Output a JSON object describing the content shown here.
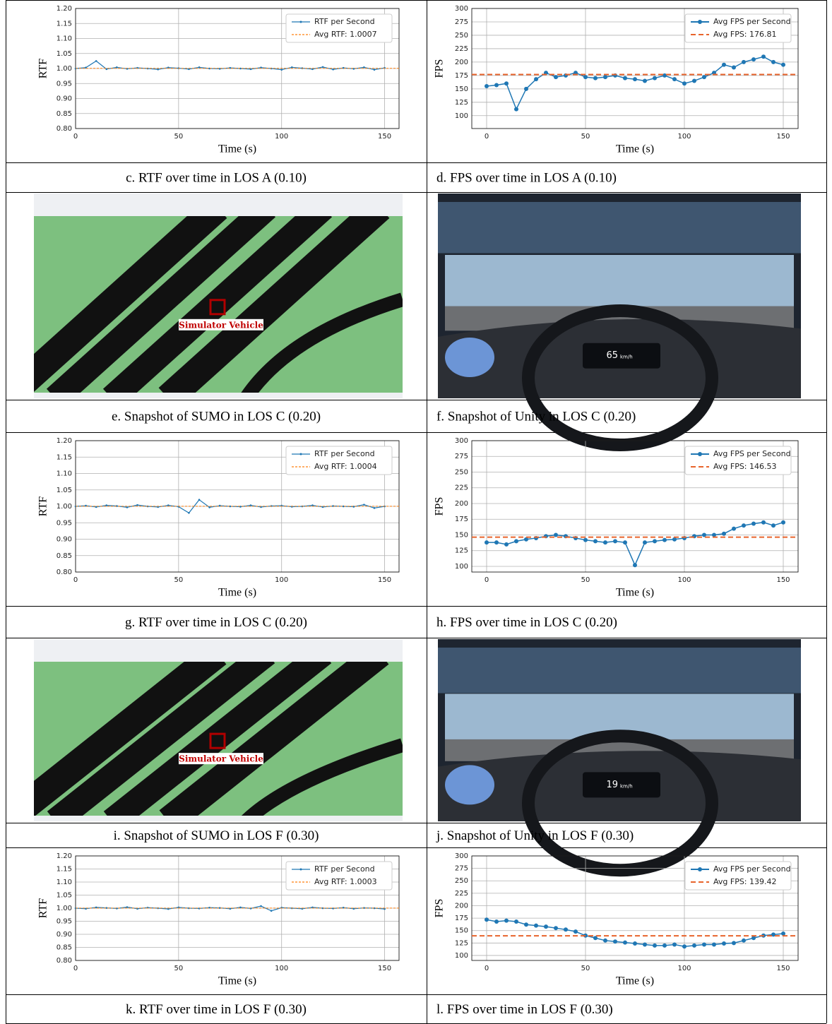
{
  "chart_data": [
    {
      "type": "line",
      "caption": "c. RTF over time in LOS A (0.10)",
      "xlabel": "Time (s)",
      "ylabel": "RTF",
      "xlim": [
        0,
        157
      ],
      "xticks": [
        0,
        50,
        100,
        150
      ],
      "ylim": [
        0.8,
        1.2
      ],
      "yticks": [
        {
          "value": 0.8,
          "label": "0.80"
        },
        {
          "value": 0.85,
          "label": "0.85"
        },
        {
          "value": 0.9,
          "label": "0.90"
        },
        {
          "value": 0.95,
          "label": "0.95"
        },
        {
          "value": 1.0,
          "label": "1.00"
        },
        {
          "value": 1.05,
          "label": "1.05"
        },
        {
          "value": 1.1,
          "label": "1.10"
        },
        {
          "value": 1.15,
          "label": "1.15"
        },
        {
          "value": 1.2,
          "label": "1.20"
        }
      ],
      "grid": true,
      "legend": "upper right",
      "x": [
        0,
        5,
        10,
        15,
        20,
        25,
        30,
        35,
        40,
        45,
        50,
        55,
        60,
        65,
        70,
        75,
        80,
        85,
        90,
        95,
        100,
        105,
        110,
        115,
        120,
        125,
        130,
        135,
        140,
        145,
        150
      ],
      "series": [
        {
          "name": "RTF per Second",
          "color": "#1f77b4",
          "values": [
            1.0,
            1.003,
            1.025,
            0.998,
            1.004,
            0.999,
            1.002,
            1.0,
            0.997,
            1.003,
            1.001,
            0.998,
            1.004,
            1.0,
            0.999,
            1.002,
            1.0,
            0.998,
            1.003,
            1.0,
            0.996,
            1.004,
            1.001,
            0.998,
            1.005,
            0.997,
            1.002,
            0.999,
            1.004,
            0.996,
            1.002
          ]
        },
        {
          "name": "Avg RTF: 1.0007",
          "color": "#ff7f0e",
          "value": 1.0007
        }
      ]
    },
    {
      "type": "line",
      "caption": "d. FPS over time in LOS A (0.10)",
      "xlabel": "Time (s)",
      "ylabel": "FPS",
      "xlim": [
        -7.5,
        157.5
      ],
      "xticks": [
        0,
        50,
        100,
        150
      ],
      "ylim": [
        76,
        300
      ],
      "yticks": [
        100,
        125,
        150,
        175,
        200,
        225,
        250,
        275,
        300
      ],
      "grid": true,
      "legend": "upper right",
      "x": [
        0,
        5,
        10,
        15,
        20,
        25,
        30,
        35,
        40,
        45,
        50,
        55,
        60,
        65,
        70,
        75,
        80,
        85,
        90,
        95,
        100,
        105,
        110,
        115,
        120,
        125,
        130,
        135,
        140,
        145,
        150
      ],
      "series": [
        {
          "name": "Avg FPS per Second",
          "color": "#1f77b4",
          "values": [
            155,
            157,
            160,
            112,
            150,
            168,
            180,
            172,
            175,
            180,
            172,
            170,
            172,
            175,
            170,
            168,
            165,
            170,
            175,
            168,
            160,
            165,
            172,
            180,
            195,
            190,
            200,
            205,
            210,
            200,
            195
          ]
        },
        {
          "name": "Avg FPS: 176.81",
          "color": "#e8642c",
          "value": 176.81
        }
      ]
    },
    {
      "type": "line",
      "caption": "g. RTF over time in LOS C (0.20)",
      "xlabel": "Time (s)",
      "ylabel": "RTF",
      "xlim": [
        0,
        157
      ],
      "xticks": [
        0,
        50,
        100,
        150
      ],
      "ylim": [
        0.8,
        1.2
      ],
      "yticks": [
        {
          "value": 0.8,
          "label": "0.80"
        },
        {
          "value": 0.85,
          "label": "0.85"
        },
        {
          "value": 0.9,
          "label": "0.90"
        },
        {
          "value": 0.95,
          "label": "0.95"
        },
        {
          "value": 1.0,
          "label": "1.00"
        },
        {
          "value": 1.05,
          "label": "1.05"
        },
        {
          "value": 1.1,
          "label": "1.10"
        },
        {
          "value": 1.15,
          "label": "1.15"
        },
        {
          "value": 1.2,
          "label": "1.20"
        }
      ],
      "grid": true,
      "legend": "upper right",
      "x": [
        0,
        5,
        10,
        15,
        20,
        25,
        30,
        35,
        40,
        45,
        50,
        55,
        60,
        65,
        70,
        75,
        80,
        85,
        90,
        95,
        100,
        105,
        110,
        115,
        120,
        125,
        130,
        135,
        140,
        145,
        150
      ],
      "series": [
        {
          "name": "RTF per Second",
          "color": "#1f77b4",
          "values": [
            1.0,
            1.002,
            0.998,
            1.003,
            1.001,
            0.997,
            1.004,
            1.0,
            0.998,
            1.003,
            0.999,
            0.98,
            1.02,
            0.997,
            1.002,
            1.0,
            0.999,
            1.003,
            0.998,
            1.001,
            1.002,
            0.999,
            1.0,
            1.003,
            0.998,
            1.001,
            1.0,
            0.999,
            1.005,
            0.995,
            1.0
          ]
        },
        {
          "name": "Avg RTF: 1.0004",
          "color": "#ff7f0e",
          "value": 1.0004
        }
      ]
    },
    {
      "type": "line",
      "caption": "h. FPS over time in LOS C (0.20)",
      "xlabel": "Time (s)",
      "ylabel": "FPS",
      "xlim": [
        -7.5,
        157.5
      ],
      "xticks": [
        0,
        50,
        100,
        150
      ],
      "ylim": [
        91,
        300
      ],
      "yticks": [
        100,
        125,
        150,
        175,
        200,
        225,
        250,
        275,
        300
      ],
      "grid": true,
      "legend": "upper right",
      "x": [
        0,
        5,
        10,
        15,
        20,
        25,
        30,
        35,
        40,
        45,
        50,
        55,
        60,
        65,
        70,
        75,
        80,
        85,
        90,
        95,
        100,
        105,
        110,
        115,
        120,
        125,
        130,
        135,
        140,
        145,
        150
      ],
      "series": [
        {
          "name": "Avg FPS per Second",
          "color": "#1f77b4",
          "values": [
            138,
            138,
            135,
            140,
            143,
            145,
            148,
            150,
            148,
            145,
            142,
            140,
            138,
            140,
            138,
            102,
            138,
            140,
            142,
            143,
            145,
            148,
            150,
            150,
            152,
            160,
            165,
            168,
            170,
            165,
            170
          ]
        },
        {
          "name": "Avg FPS: 146.53",
          "color": "#e8642c",
          "value": 146.53
        }
      ]
    },
    {
      "type": "line",
      "caption": "k. RTF over time in LOS F (0.30)",
      "xlabel": "Time (s)",
      "ylabel": "RTF",
      "xlim": [
        0,
        157
      ],
      "xticks": [
        0,
        50,
        100,
        150
      ],
      "ylim": [
        0.8,
        1.2
      ],
      "yticks": [
        {
          "value": 0.8,
          "label": "0.80"
        },
        {
          "value": 0.85,
          "label": "0.85"
        },
        {
          "value": 0.9,
          "label": "0.90"
        },
        {
          "value": 0.95,
          "label": "0.95"
        },
        {
          "value": 1.0,
          "label": "1.00"
        },
        {
          "value": 1.05,
          "label": "1.05"
        },
        {
          "value": 1.1,
          "label": "1.10"
        },
        {
          "value": 1.15,
          "label": "1.15"
        },
        {
          "value": 1.2,
          "label": "1.20"
        }
      ],
      "grid": true,
      "legend": "upper right",
      "x": [
        0,
        5,
        10,
        15,
        20,
        25,
        30,
        35,
        40,
        45,
        50,
        55,
        60,
        65,
        70,
        75,
        80,
        85,
        90,
        95,
        100,
        105,
        110,
        115,
        120,
        125,
        130,
        135,
        140,
        145,
        150
      ],
      "series": [
        {
          "name": "RTF per Second",
          "color": "#1f77b4",
          "values": [
            1.0,
            0.998,
            1.003,
            1.001,
            0.999,
            1.004,
            0.998,
            1.002,
            1.0,
            0.997,
            1.003,
            1.0,
            0.999,
            1.002,
            1.001,
            0.998,
            1.003,
            0.999,
            1.008,
            0.99,
            1.002,
            1.0,
            0.998,
            1.003,
            1.0,
            0.999,
            1.002,
            0.998,
            1.001,
            1.0,
            0.997
          ]
        },
        {
          "name": "Avg RTF: 1.0003",
          "color": "#ff7f0e",
          "value": 1.0003
        }
      ]
    },
    {
      "type": "line",
      "caption": "l. FPS over time in LOS F (0.30)",
      "xlabel": "Time (s)",
      "ylabel": "FPS",
      "xlim": [
        -7.5,
        157.5
      ],
      "xticks": [
        0,
        50,
        100,
        150
      ],
      "ylim": [
        90,
        300
      ],
      "yticks": [
        100,
        125,
        150,
        175,
        200,
        225,
        250,
        275,
        300
      ],
      "grid": true,
      "legend": "upper right",
      "x": [
        0,
        5,
        10,
        15,
        20,
        25,
        30,
        35,
        40,
        45,
        50,
        55,
        60,
        65,
        70,
        75,
        80,
        85,
        90,
        95,
        100,
        105,
        110,
        115,
        120,
        125,
        130,
        135,
        140,
        145,
        150
      ],
      "series": [
        {
          "name": "Avg FPS per Second",
          "color": "#1f77b4",
          "values": [
            172,
            168,
            170,
            168,
            162,
            160,
            158,
            155,
            152,
            148,
            140,
            135,
            130,
            128,
            126,
            124,
            122,
            120,
            120,
            122,
            118,
            120,
            122,
            122,
            124,
            125,
            130,
            135,
            140,
            142,
            144
          ]
        },
        {
          "name": "Avg FPS: 139.42",
          "color": "#e8642c",
          "value": 139.42
        }
      ]
    }
  ],
  "images": [
    {
      "kind": "sumo",
      "caption": "e. Snapshot of SUMO in LOS C (0.20)",
      "label": "Simulator Vehicle"
    },
    {
      "kind": "unity",
      "caption": "f. Snapshot of Unity in LOS C (0.20)",
      "speed": "65",
      "speed_unit": "km/h"
    },
    {
      "kind": "sumo",
      "caption": "i. Snapshot of SUMO in LOS F (0.30)",
      "label": "Simulator Vehicle"
    },
    {
      "kind": "unity",
      "caption": "j. Snapshot of Unity in LOS F (0.30)",
      "speed": "19",
      "speed_unit": "km/h"
    }
  ]
}
